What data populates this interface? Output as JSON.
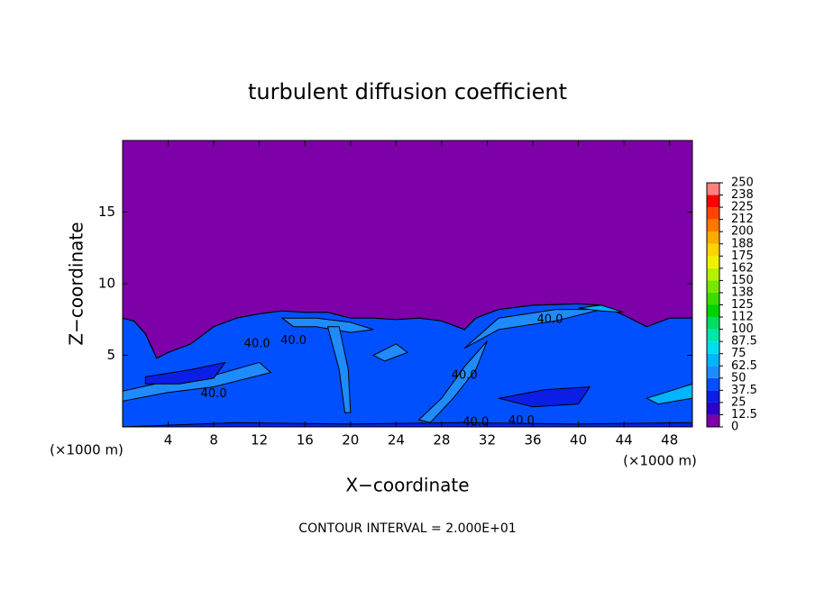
{
  "chart_data": {
    "type": "contour",
    "title": "turbulent diffusion coefficient",
    "xlabel": "X−coordinate",
    "ylabel": "Z−coordinate",
    "x_unit": "(×1000 m)",
    "y_unit": "(×1000 m)",
    "note": "CONTOUR INTERVAL = 2.000E+01",
    "xlim": [
      0,
      50
    ],
    "ylim": [
      0,
      20
    ],
    "xticks": [
      4,
      8,
      12,
      16,
      20,
      24,
      28,
      32,
      36,
      40,
      44,
      48
    ],
    "yticks": [
      5,
      10,
      15
    ],
    "contour_labels": [
      "40.0",
      "40.0",
      "40.0",
      "40.0",
      "40.0",
      "40.0",
      "40.0"
    ],
    "colorbar_ticks": [
      0,
      12.5,
      25,
      37.5,
      50,
      62.5,
      75,
      87.5,
      100,
      112,
      125,
      138,
      150,
      162,
      175,
      188,
      200,
      212,
      225,
      238,
      250
    ],
    "colorbar_colors": [
      "#7d00a8",
      "#2a00c8",
      "#0a1ee6",
      "#0050ff",
      "#1e8cff",
      "#00b4ff",
      "#00dcf0",
      "#00e6aa",
      "#00dc64",
      "#00d200",
      "#3cdc00",
      "#78e600",
      "#b4f000",
      "#f0f000",
      "#ffd200",
      "#ffaa00",
      "#ff7800",
      "#ff4600",
      "#ff0000",
      "#ff8080"
    ]
  }
}
